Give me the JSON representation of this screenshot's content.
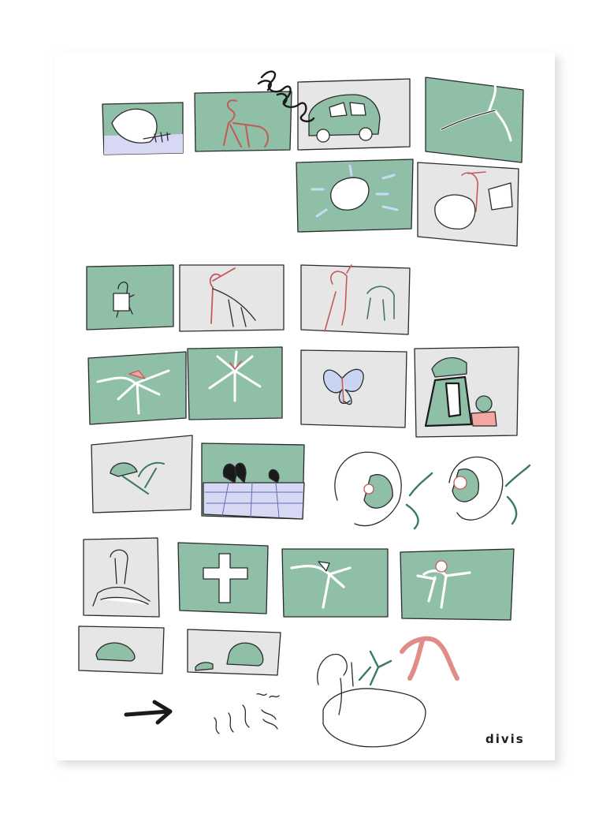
{
  "artwork": {
    "signature": "divis",
    "palette": {
      "background": "#ffffff",
      "paper": "#ffffff",
      "frame_shadow": "#e3e3e3",
      "green": "#8fbfa6",
      "grey": "#e6e6e6",
      "lavender": "#d6d8f4",
      "pink": "#f2a7a3",
      "ink": "#2a2a2a",
      "scribble": "#1a1a1a"
    }
  }
}
